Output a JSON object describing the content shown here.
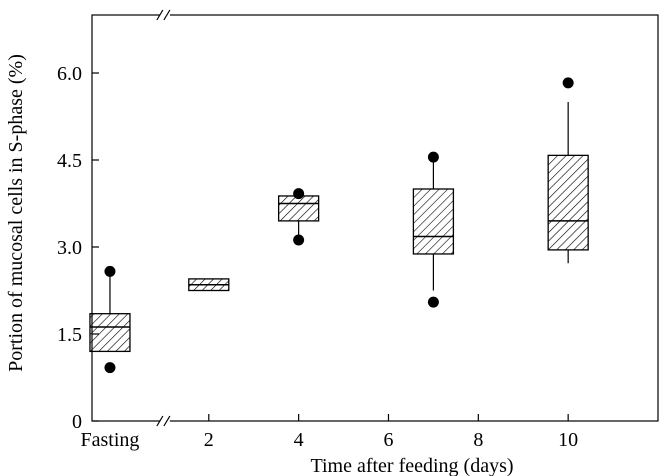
{
  "chart_data": {
    "type": "box",
    "title": "",
    "xlabel": "Time after feeding (days)",
    "ylabel": "Portion of mucosal cells in S-phase (%)",
    "ylim": [
      0,
      7
    ],
    "xlim": [
      -0.6,
      12
    ],
    "y_ticks": [
      {
        "value": 0,
        "label": "0"
      },
      {
        "value": 1.5,
        "label": "1.5"
      },
      {
        "value": 3.0,
        "label": "3.0"
      },
      {
        "value": 4.5,
        "label": "4.5"
      },
      {
        "value": 6.0,
        "label": "6.0"
      }
    ],
    "x_ticks": [
      {
        "value": -0.2,
        "label": "Fasting"
      },
      {
        "value": 2,
        "label": "2"
      },
      {
        "value": 4,
        "label": "4"
      },
      {
        "value": 6,
        "label": "6"
      },
      {
        "value": 8,
        "label": "8"
      },
      {
        "value": 10,
        "label": "10"
      }
    ],
    "axis_break_x": 1.0,
    "grid": false,
    "box_fill": "hatched",
    "boxes": [
      {
        "x": -0.2,
        "label": "Fasting",
        "whisker_low": 1.2,
        "q1": 1.2,
        "median": 1.62,
        "q3": 1.85,
        "whisker_high": 2.58,
        "outliers": [
          0.92,
          2.58
        ]
      },
      {
        "x": 2,
        "label": "2",
        "whisker_low": 2.25,
        "q1": 2.25,
        "median": 2.35,
        "q3": 2.45,
        "whisker_high": 2.45,
        "outliers": []
      },
      {
        "x": 4,
        "label": "4",
        "whisker_low": 3.12,
        "q1": 3.45,
        "median": 3.75,
        "q3": 3.88,
        "whisker_high": 3.92,
        "outliers": [
          3.12,
          3.92
        ]
      },
      {
        "x": 7,
        "label": "",
        "whisker_low": 2.25,
        "q1": 2.88,
        "median": 3.18,
        "q3": 4.0,
        "whisker_high": 4.55,
        "outliers": [
          2.05,
          4.55
        ]
      },
      {
        "x": 10,
        "label": "10",
        "whisker_low": 2.72,
        "q1": 2.95,
        "median": 3.45,
        "q3": 4.58,
        "whisker_high": 5.5,
        "outliers": [
          5.83
        ]
      }
    ]
  }
}
